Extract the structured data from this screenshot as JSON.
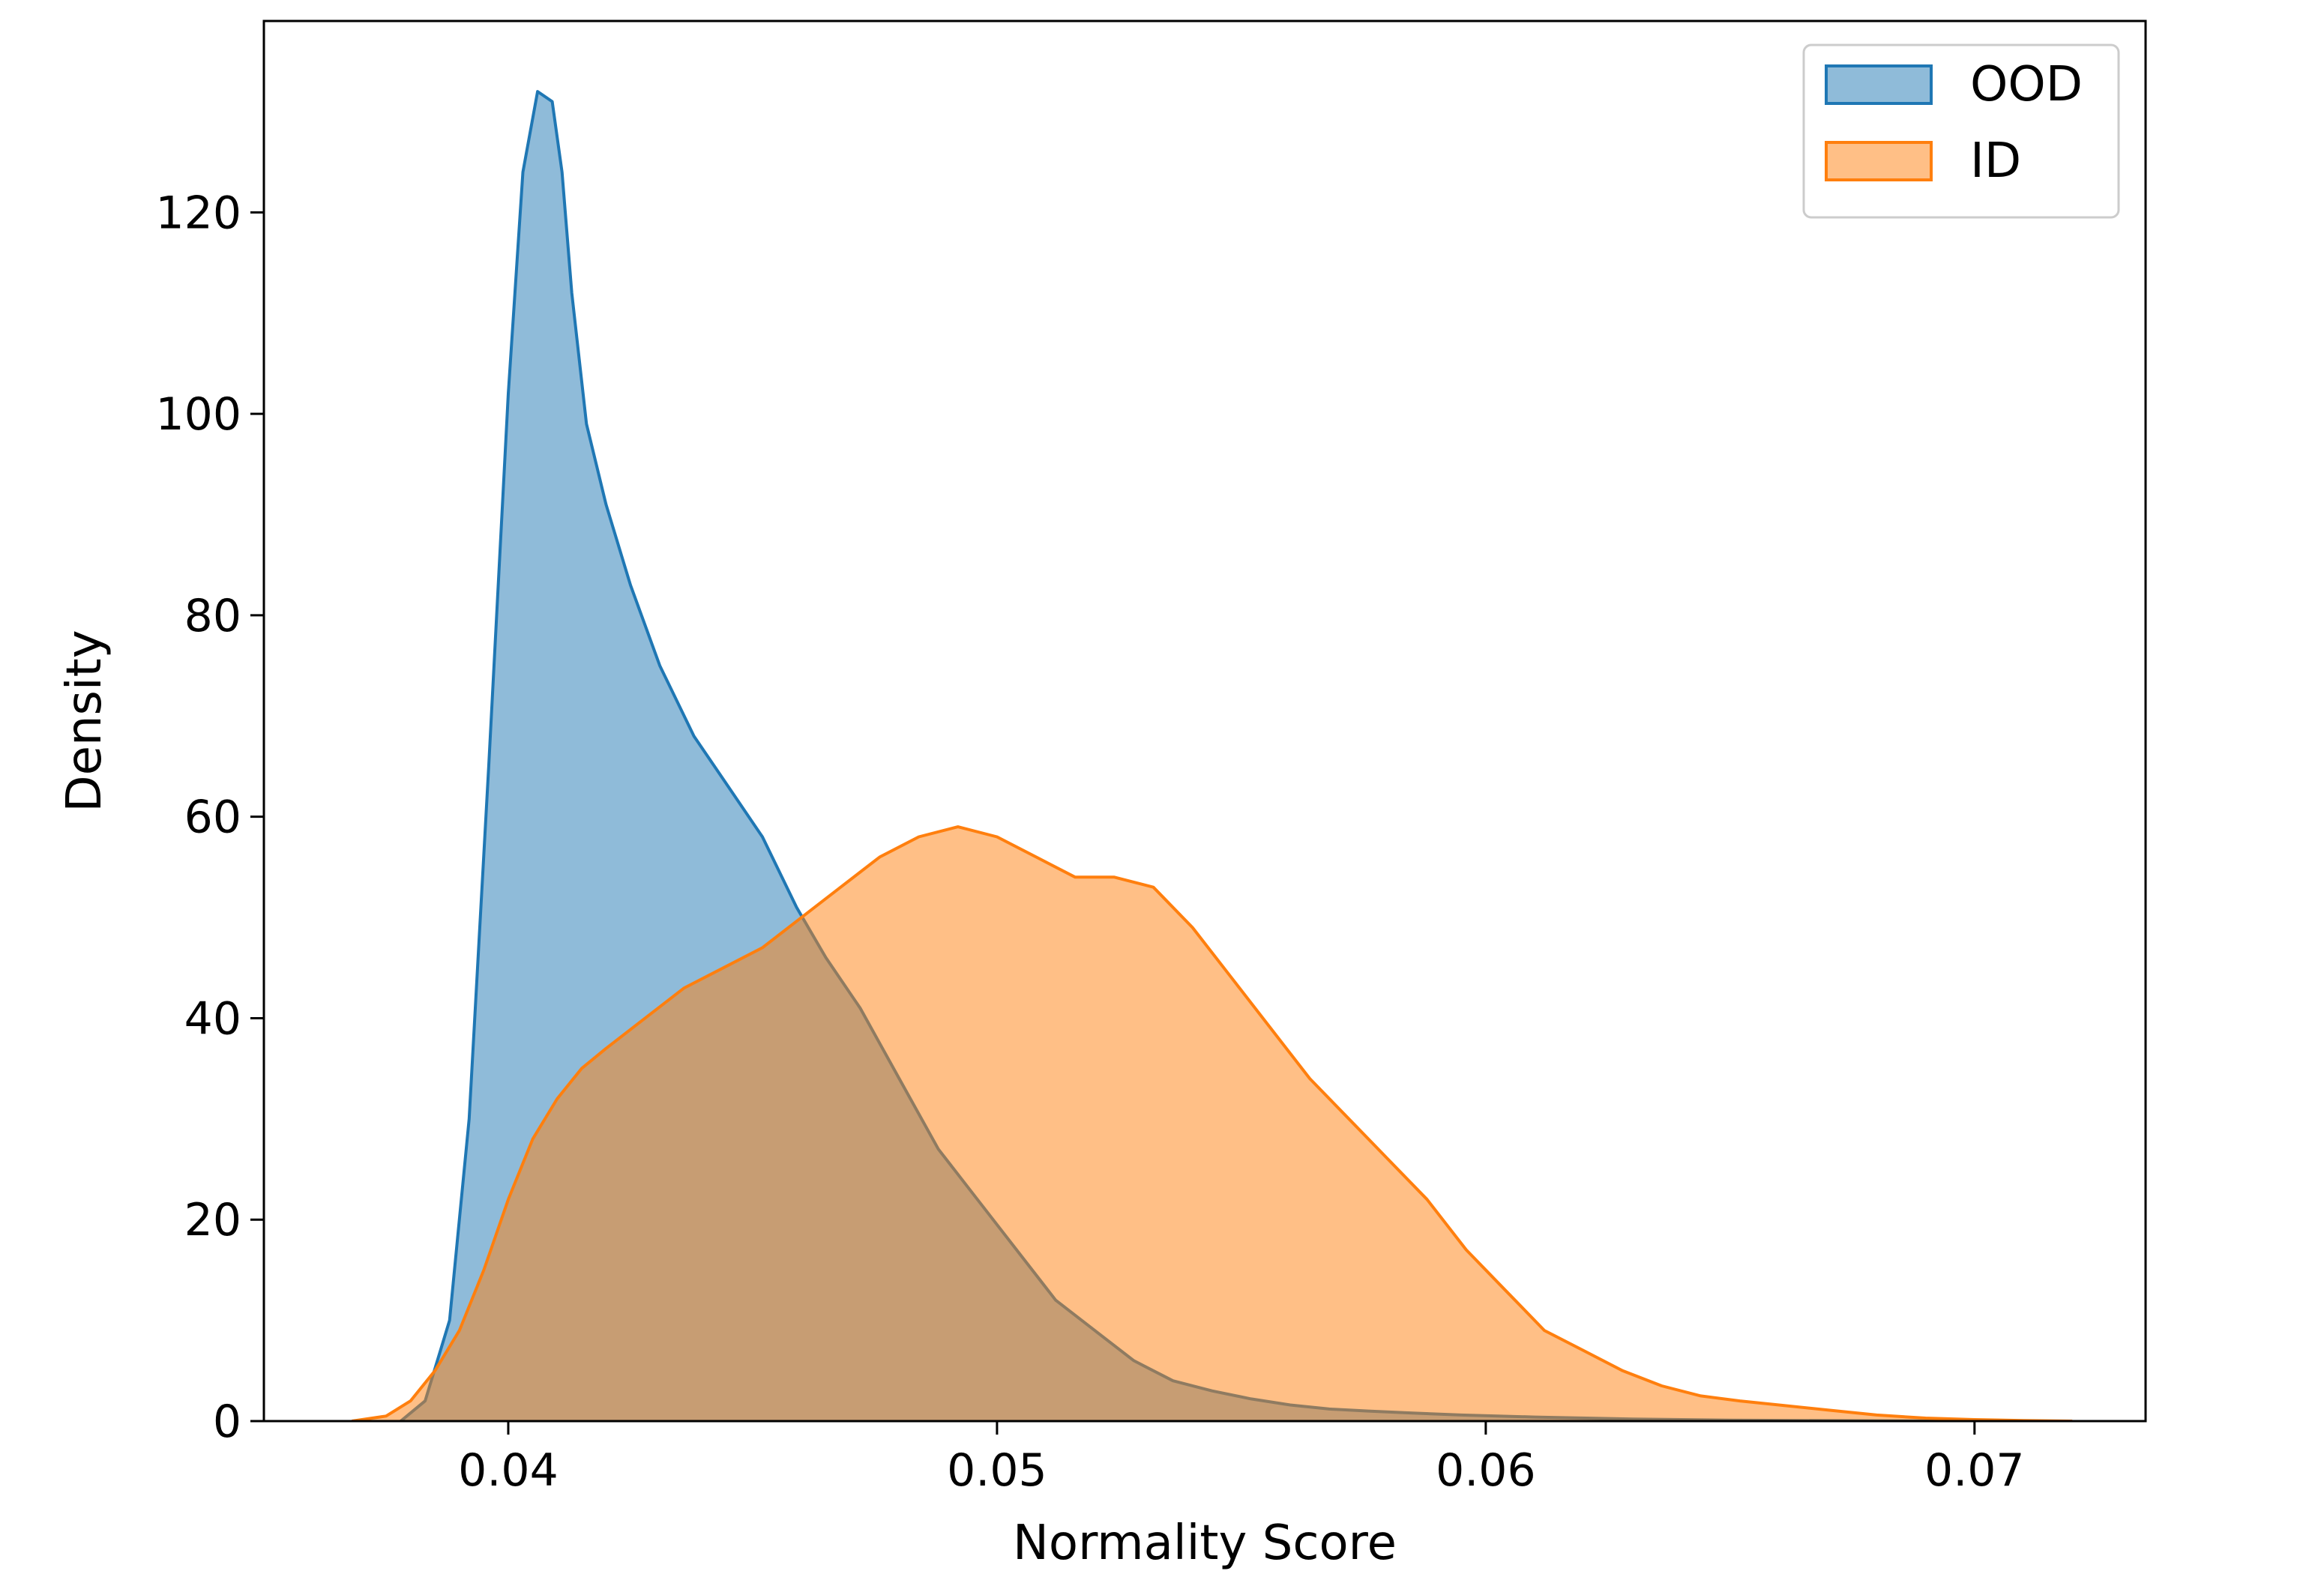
{
  "chart_data": {
    "type": "area",
    "xlabel": "Normality Score",
    "ylabel": "Density",
    "xlim": [
      0.035,
      0.0735
    ],
    "ylim": [
      0,
      139
    ],
    "xticks": [
      0.04,
      0.05,
      0.06,
      0.07
    ],
    "xtick_labels": [
      "0.04",
      "0.05",
      "0.06",
      "0.07"
    ],
    "yticks": [
      0,
      20,
      40,
      60,
      80,
      100,
      120
    ],
    "ytick_labels": [
      "0",
      "20",
      "40",
      "60",
      "80",
      "100",
      "120"
    ],
    "grid": false,
    "legend": {
      "position": "top-right",
      "entries": [
        "OOD",
        "ID"
      ]
    },
    "series": [
      {
        "name": "OOD",
        "color": "#1f77b4",
        "fill_opacity": 0.5,
        "x": [
          0.0378,
          0.0383,
          0.0388,
          0.0392,
          0.0396,
          0.04,
          0.0403,
          0.0406,
          0.0409,
          0.0411,
          0.0413,
          0.0416,
          0.042,
          0.0425,
          0.0431,
          0.0438,
          0.0445,
          0.0452,
          0.0459,
          0.0465,
          0.0472,
          0.048,
          0.0488,
          0.0496,
          0.0504,
          0.0512,
          0.052,
          0.0528,
          0.0536,
          0.0544,
          0.0552,
          0.056,
          0.0568,
          0.0576,
          0.0585,
          0.0595,
          0.061,
          0.063,
          0.065,
          0.067,
          0.069,
          0.071
        ],
        "y": [
          0,
          2,
          10,
          30,
          65,
          102,
          124,
          132,
          131,
          124,
          112,
          99,
          91,
          83,
          75,
          68,
          63,
          58,
          51,
          46,
          41,
          34,
          27,
          22,
          17,
          12,
          9,
          6,
          4,
          3,
          2.2,
          1.6,
          1.2,
          1.0,
          0.8,
          0.6,
          0.4,
          0.2,
          0.1,
          0.05,
          0.02,
          0
        ]
      },
      {
        "name": "ID",
        "color": "#ff7f0e",
        "fill_opacity": 0.5,
        "x": [
          0.0368,
          0.0375,
          0.038,
          0.0385,
          0.039,
          0.0395,
          0.04,
          0.0405,
          0.041,
          0.0415,
          0.042,
          0.0428,
          0.0436,
          0.0444,
          0.0452,
          0.046,
          0.0468,
          0.0476,
          0.0484,
          0.0492,
          0.05,
          0.0508,
          0.0516,
          0.0524,
          0.0532,
          0.054,
          0.0548,
          0.0556,
          0.0564,
          0.0572,
          0.058,
          0.0588,
          0.0596,
          0.0604,
          0.0612,
          0.062,
          0.0628,
          0.0636,
          0.0644,
          0.0652,
          0.066,
          0.067,
          0.068,
          0.069,
          0.07,
          0.071,
          0.072
        ],
        "y": [
          0,
          0.5,
          2,
          5,
          9,
          15,
          22,
          28,
          32,
          35,
          37,
          40,
          43,
          45,
          47,
          50,
          53,
          56,
          58,
          59,
          58,
          56,
          54,
          54,
          53,
          49,
          44,
          39,
          34,
          30,
          26,
          22,
          17,
          13,
          9,
          7,
          5,
          3.5,
          2.5,
          2,
          1.6,
          1.1,
          0.6,
          0.3,
          0.15,
          0.05,
          0
        ]
      }
    ]
  }
}
